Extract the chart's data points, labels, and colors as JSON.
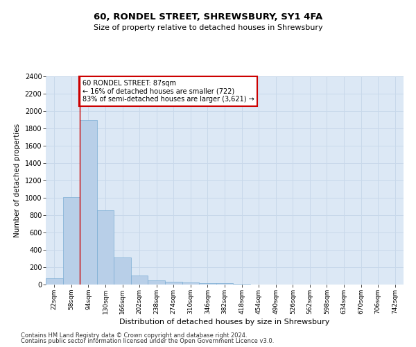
{
  "title1": "60, RONDEL STREET, SHREWSBURY, SY1 4FA",
  "title2": "Size of property relative to detached houses in Shrewsbury",
  "xlabel": "Distribution of detached houses by size in Shrewsbury",
  "ylabel": "Number of detached properties",
  "footer1": "Contains HM Land Registry data © Crown copyright and database right 2024.",
  "footer2": "Contains public sector information licensed under the Open Government Licence v3.0.",
  "bar_labels": [
    "22sqm",
    "58sqm",
    "94sqm",
    "130sqm",
    "166sqm",
    "202sqm",
    "238sqm",
    "274sqm",
    "310sqm",
    "346sqm",
    "382sqm",
    "418sqm",
    "454sqm",
    "490sqm",
    "526sqm",
    "562sqm",
    "598sqm",
    "634sqm",
    "670sqm",
    "706sqm",
    "742sqm"
  ],
  "bar_values": [
    75,
    1010,
    1900,
    860,
    310,
    105,
    50,
    35,
    25,
    18,
    14,
    10,
    0,
    0,
    0,
    0,
    0,
    0,
    0,
    0,
    0
  ],
  "bar_color": "#b8cfe8",
  "bar_edge_color": "#7aadd4",
  "grid_color": "#c8d8ea",
  "background_color": "#dce8f5",
  "property_line_x": 1.5,
  "annotation_text1": "60 RONDEL STREET: 87sqm",
  "annotation_text2": "← 16% of detached houses are smaller (722)",
  "annotation_text3": "83% of semi-detached houses are larger (3,621) →",
  "annotation_box_color": "#ffffff",
  "annotation_border_color": "#cc0000",
  "vline_color": "#cc0000",
  "ylim": [
    0,
    2400
  ],
  "yticks": [
    0,
    200,
    400,
    600,
    800,
    1000,
    1200,
    1400,
    1600,
    1800,
    2000,
    2200,
    2400
  ],
  "figsize": [
    6.0,
    5.0
  ],
  "dpi": 100
}
